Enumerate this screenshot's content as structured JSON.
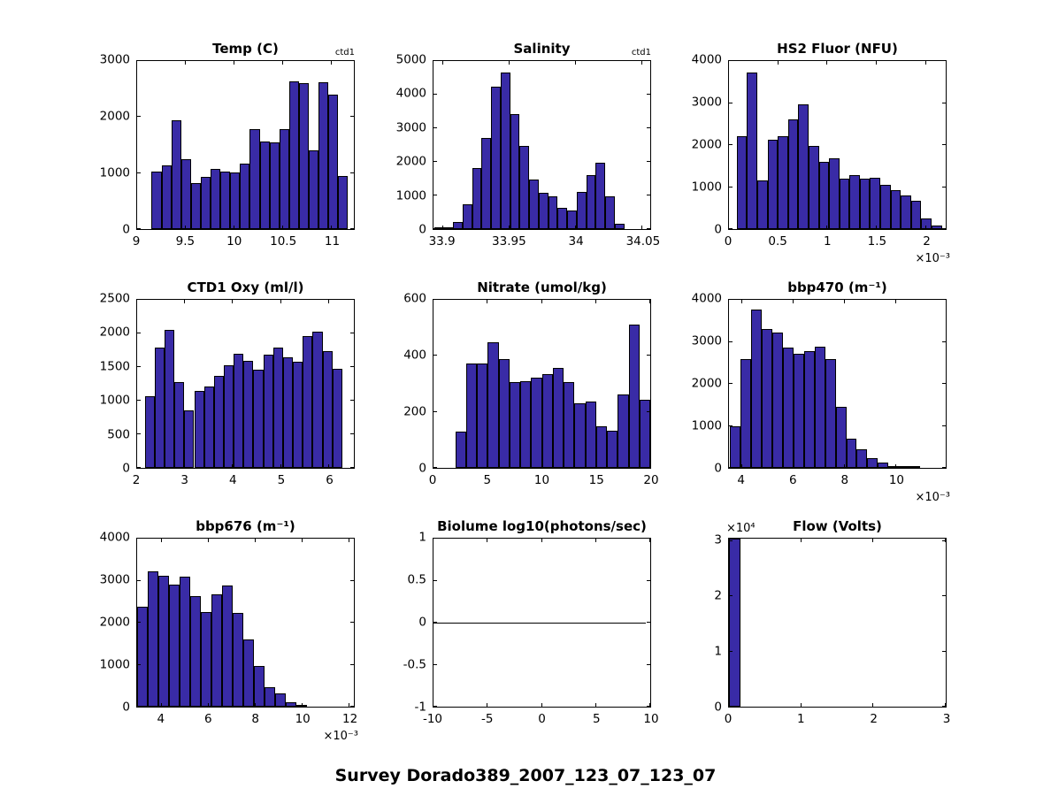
{
  "figure_title": "Survey Dorado389_2007_123_07_123_07",
  "style": {
    "bar_fill": "#392ba6",
    "bar_edge": "#000000",
    "axis_color": "#000000",
    "background": "#ffffff"
  },
  "chart_data": [
    {
      "id": "temp",
      "type": "bar",
      "title": "Temp (C)",
      "annotation": "ctd1",
      "xlabel": "",
      "ylabel": "",
      "xlim": [
        9,
        11.23
      ],
      "ylim": [
        0,
        3000
      ],
      "xticks": [
        {
          "v": 9,
          "l": "9"
        },
        {
          "v": 9.5,
          "l": "9.5"
        },
        {
          "v": 10,
          "l": "10"
        },
        {
          "v": 10.5,
          "l": "10.5"
        },
        {
          "v": 11,
          "l": "11"
        }
      ],
      "yticks": [
        {
          "v": 0,
          "l": "0"
        },
        {
          "v": 1000,
          "l": "1000"
        },
        {
          "v": 2000,
          "l": "2000"
        },
        {
          "v": 3000,
          "l": "3000"
        }
      ],
      "bin_start": 9.15,
      "bin_width": 0.101,
      "values": [
        1030,
        1130,
        1950,
        1250,
        820,
        930,
        1070,
        1020,
        1010,
        1170,
        1780,
        1570,
        1550,
        1790,
        2630,
        2600,
        1400,
        2620,
        2400,
        950
      ]
    },
    {
      "id": "salinity",
      "type": "bar",
      "title": "Salinity",
      "annotation": "ctd1",
      "xlabel": "",
      "ylabel": "",
      "xlim": [
        33.893,
        34.056
      ],
      "ylim": [
        0,
        5000
      ],
      "xticks": [
        {
          "v": 33.9,
          "l": "33.9"
        },
        {
          "v": 33.95,
          "l": "33.95"
        },
        {
          "v": 34,
          "l": "34"
        },
        {
          "v": 34.05,
          "l": "34.05"
        }
      ],
      "yticks": [
        {
          "v": 0,
          "l": "0"
        },
        {
          "v": 1000,
          "l": "1000"
        },
        {
          "v": 2000,
          "l": "2000"
        },
        {
          "v": 3000,
          "l": "3000"
        },
        {
          "v": 4000,
          "l": "4000"
        },
        {
          "v": 5000,
          "l": "5000"
        }
      ],
      "bin_start": 33.8935,
      "bin_width": 0.00715,
      "values": [
        30,
        50,
        220,
        750,
        1820,
        2720,
        4230,
        4650,
        3420,
        2470,
        1470,
        1070,
        980,
        630,
        540,
        1110,
        1600,
        1970,
        980,
        150
      ]
    },
    {
      "id": "hs2-fluor",
      "type": "bar",
      "title": "HS2 Fluor (NFU)",
      "xlabel": "",
      "ylabel": "",
      "x_exp": "×10⁻³",
      "xlim": [
        0,
        2.2
      ],
      "ylim": [
        0,
        4000
      ],
      "xticks": [
        {
          "v": 0,
          "l": "0"
        },
        {
          "v": 0.5,
          "l": "0.5"
        },
        {
          "v": 1,
          "l": "1"
        },
        {
          "v": 1.5,
          "l": "1.5"
        },
        {
          "v": 2,
          "l": "2"
        }
      ],
      "yticks": [
        {
          "v": 0,
          "l": "0"
        },
        {
          "v": 1000,
          "l": "1000"
        },
        {
          "v": 2000,
          "l": "2000"
        },
        {
          "v": 3000,
          "l": "3000"
        },
        {
          "v": 4000,
          "l": "4000"
        }
      ],
      "bin_start": 0.08,
      "bin_width": 0.104,
      "values": [
        2210,
        3730,
        1160,
        2120,
        2220,
        2610,
        2960,
        1980,
        1610,
        1680,
        1190,
        1290,
        1200,
        1230,
        1050,
        920,
        800,
        670,
        250,
        75
      ]
    },
    {
      "id": "ctd1-oxy",
      "type": "bar",
      "title": "CTD1 Oxy (ml/l)",
      "xlabel": "",
      "ylabel": "",
      "xlim": [
        2,
        6.52
      ],
      "ylim": [
        0,
        2500
      ],
      "xticks": [
        {
          "v": 2,
          "l": "2"
        },
        {
          "v": 3,
          "l": "3"
        },
        {
          "v": 4,
          "l": "4"
        },
        {
          "v": 5,
          "l": "5"
        },
        {
          "v": 6,
          "l": "6"
        }
      ],
      "yticks": [
        {
          "v": 0,
          "l": "0"
        },
        {
          "v": 500,
          "l": "500"
        },
        {
          "v": 1000,
          "l": "1000"
        },
        {
          "v": 1500,
          "l": "1500"
        },
        {
          "v": 2000,
          "l": "2000"
        },
        {
          "v": 2500,
          "l": "2500"
        }
      ],
      "bin_start": 2.16,
      "bin_width": 0.206,
      "values": [
        1070,
        1790,
        2050,
        1280,
        860,
        1150,
        1210,
        1370,
        1530,
        1700,
        1590,
        1460,
        1690,
        1790,
        1650,
        1580,
        1960,
        2020,
        1740,
        1480
      ]
    },
    {
      "id": "nitrate",
      "type": "bar",
      "title": "Nitrate (umol/kg)",
      "xlabel": "",
      "ylabel": "",
      "xlim": [
        0,
        20
      ],
      "ylim": [
        0,
        600
      ],
      "xticks": [
        {
          "v": 0,
          "l": "0"
        },
        {
          "v": 5,
          "l": "5"
        },
        {
          "v": 10,
          "l": "10"
        },
        {
          "v": 15,
          "l": "15"
        },
        {
          "v": 20,
          "l": "20"
        }
      ],
      "yticks": [
        {
          "v": 0,
          "l": "0"
        },
        {
          "v": 200,
          "l": "200"
        },
        {
          "v": 400,
          "l": "400"
        },
        {
          "v": 600,
          "l": "600"
        }
      ],
      "bin_start": 2,
      "bin_width": 1,
      "values": [
        128,
        373,
        373,
        447,
        388,
        305,
        310,
        323,
        335,
        356,
        305,
        230,
        238,
        150,
        133,
        263,
        512,
        243
      ]
    },
    {
      "id": "bbp470",
      "type": "bar",
      "title": "bbp470 (m⁻¹)",
      "xlabel": "",
      "ylabel": "",
      "x_exp": "×10⁻³",
      "xlim": [
        3.5,
        11.93
      ],
      "ylim": [
        0,
        4000
      ],
      "xticks": [
        {
          "v": 4,
          "l": "4"
        },
        {
          "v": 6,
          "l": "6"
        },
        {
          "v": 8,
          "l": "8"
        },
        {
          "v": 10,
          "l": "10"
        }
      ],
      "yticks": [
        {
          "v": 0,
          "l": "0"
        },
        {
          "v": 1000,
          "l": "1000"
        },
        {
          "v": 2000,
          "l": "2000"
        },
        {
          "v": 3000,
          "l": "3000"
        },
        {
          "v": 4000,
          "l": "4000"
        }
      ],
      "bin_start": 3.55,
      "bin_width": 0.41,
      "values": [
        1000,
        2600,
        3760,
        3300,
        3230,
        2860,
        2720,
        2780,
        2880,
        2580,
        1450,
        690,
        440,
        230,
        130,
        40,
        20,
        10
      ]
    },
    {
      "id": "bbp676",
      "type": "bar",
      "title": "bbp676 (m⁻¹)",
      "xlabel": "",
      "ylabel": "",
      "x_exp": "×10⁻³",
      "xlim": [
        2.96,
        12.2
      ],
      "ylim": [
        0,
        4000
      ],
      "xticks": [
        {
          "v": 4,
          "l": "4"
        },
        {
          "v": 6,
          "l": "6"
        },
        {
          "v": 8,
          "l": "8"
        },
        {
          "v": 10,
          "l": "10"
        },
        {
          "v": 12,
          "l": "12"
        }
      ],
      "yticks": [
        {
          "v": 0,
          "l": "0"
        },
        {
          "v": 1000,
          "l": "1000"
        },
        {
          "v": 2000,
          "l": "2000"
        },
        {
          "v": 3000,
          "l": "3000"
        },
        {
          "v": 4000,
          "l": "4000"
        }
      ],
      "bin_start": 2.96,
      "bin_width": 0.452,
      "values": [
        2370,
        3220,
        3120,
        2910,
        3100,
        2640,
        2250,
        2670,
        2880,
        2230,
        1590,
        970,
        460,
        310,
        110,
        15
      ]
    },
    {
      "id": "biolume",
      "type": "line",
      "title": "Biolume log10(photons/sec)",
      "xlabel": "",
      "ylabel": "",
      "xlim": [
        -10,
        10
      ],
      "ylim": [
        -1,
        1
      ],
      "xticks": [
        {
          "v": -10,
          "l": "-10"
        },
        {
          "v": -5,
          "l": "-5"
        },
        {
          "v": 0,
          "l": "0"
        },
        {
          "v": 5,
          "l": "5"
        },
        {
          "v": 10,
          "l": "10"
        }
      ],
      "yticks": [
        {
          "v": -1,
          "l": "-1"
        },
        {
          "v": -0.5,
          "l": "-0.5"
        },
        {
          "v": 0,
          "l": "0"
        },
        {
          "v": 0.5,
          "l": "0.5"
        },
        {
          "v": 1,
          "l": "1"
        }
      ],
      "line": {
        "y": 0,
        "x0": -10,
        "x1": 9.6
      }
    },
    {
      "id": "flow",
      "type": "bar",
      "title": "Flow (Volts)",
      "xlabel": "",
      "ylabel": "",
      "y_exp": "×10⁴",
      "xlim": [
        0,
        3
      ],
      "ylim": [
        0,
        30500
      ],
      "xticks": [
        {
          "v": 0,
          "l": "0"
        },
        {
          "v": 1,
          "l": "1"
        },
        {
          "v": 2,
          "l": "2"
        },
        {
          "v": 3,
          "l": "3"
        }
      ],
      "yticks": [
        {
          "v": 0,
          "l": "0"
        },
        {
          "v": 10000,
          "l": "1"
        },
        {
          "v": 20000,
          "l": "2"
        },
        {
          "v": 30000,
          "l": "3"
        }
      ],
      "bin_start": 0,
      "bin_width": 0.155,
      "values": [
        30500
      ]
    }
  ]
}
